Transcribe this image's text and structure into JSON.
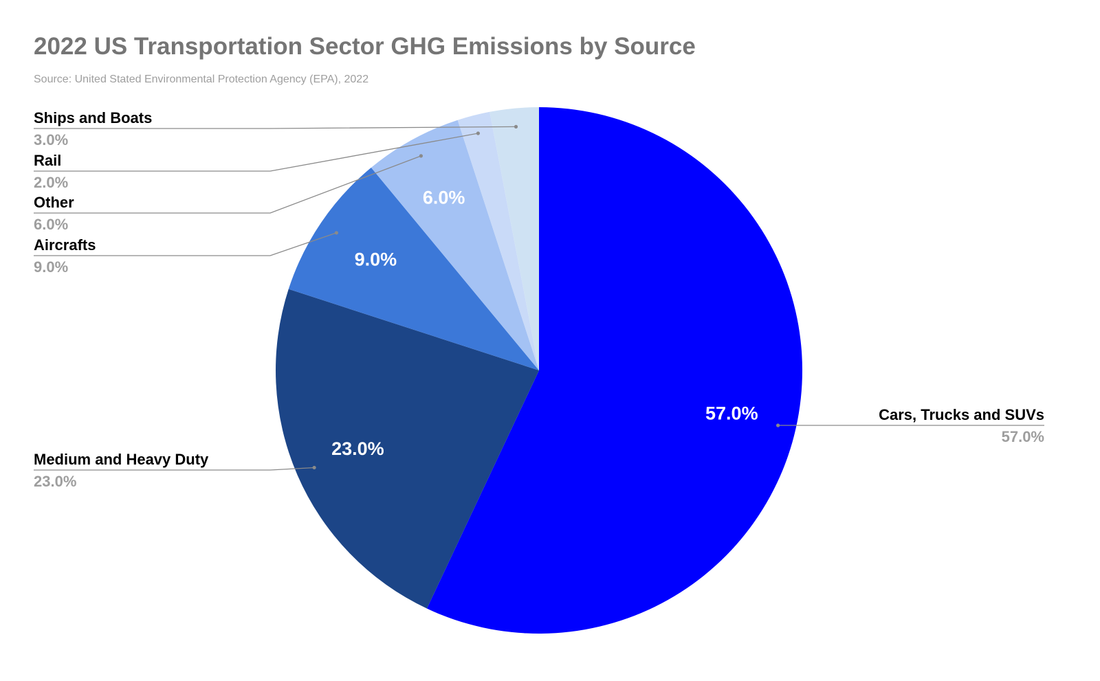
{
  "chart_data": {
    "type": "pie",
    "title": "2022 US Transportation Sector GHG Emissions by Source",
    "subtitle": "Source: United Stated Environmental Protection Agency (EPA), 2022",
    "unit": "%",
    "slices": [
      {
        "name": "Cars, Trucks and SUVs",
        "value": 57.0,
        "label": "57.0%",
        "color": "#0000ff"
      },
      {
        "name": "Medium and Heavy Duty",
        "value": 23.0,
        "label": "23.0%",
        "color": "#1c4587"
      },
      {
        "name": "Aircrafts",
        "value": 9.0,
        "label": "9.0%",
        "color": "#3c78d8"
      },
      {
        "name": "Other",
        "value": 6.0,
        "label": "6.0%",
        "color": "#a4c2f4"
      },
      {
        "name": "Rail",
        "value": 2.0,
        "label": "2.0%",
        "color": "#c9daf8"
      },
      {
        "name": "Ships and Boats",
        "value": 3.0,
        "label": "3.0%",
        "color": "#cfe2f3"
      }
    ],
    "start_angle": "12 o'clock",
    "direction": "clockwise",
    "legend": "leader-line labels around pie"
  }
}
